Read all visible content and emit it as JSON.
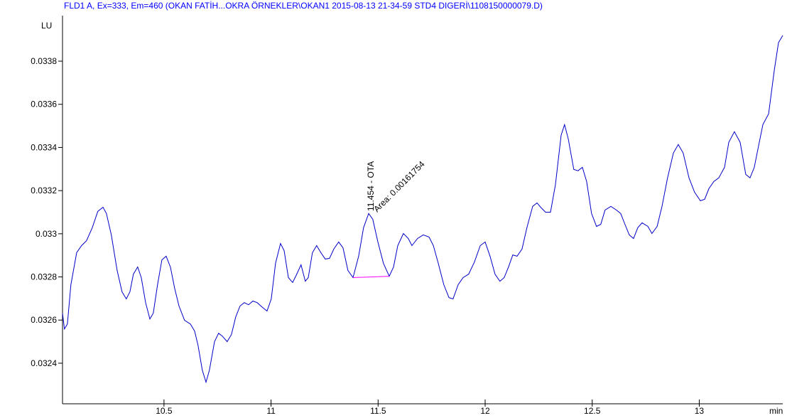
{
  "chart_data": {
    "type": "line",
    "title": "FLD1 A, Ex=333, Em=460 (OKAN FATİH...OKRA ÖRNEKLER\\OKAN1 2015-08-13 21-34-59 STD4 DIGERİ\\1108150000079.D)",
    "y_label": "LU",
    "x_label": "min",
    "annotations": [
      "11.454 - OTA",
      "Area: 0.00161754"
    ],
    "xlim": [
      10.026,
      13.39
    ],
    "ylim": [
      0.032212,
      0.034011
    ],
    "xticks": [
      10.5,
      11,
      11.5,
      12,
      12.5,
      13
    ],
    "yticks": [
      0.0324,
      0.0326,
      0.0328,
      0.033,
      0.0332,
      0.0334,
      0.0336,
      0.0338
    ],
    "series": [
      {
        "color": "#0000c8",
        "x": [
          10.026,
          10.035,
          10.049,
          10.065,
          10.092,
          10.115,
          10.138,
          10.165,
          10.191,
          10.215,
          10.231,
          10.254,
          10.281,
          10.304,
          10.324,
          10.341,
          10.357,
          10.377,
          10.394,
          10.414,
          10.434,
          10.45,
          10.47,
          10.49,
          10.51,
          10.53,
          10.55,
          10.57,
          10.596,
          10.623,
          10.643,
          10.659,
          10.679,
          10.696,
          10.712,
          10.736,
          10.755,
          10.772,
          10.795,
          10.815,
          10.835,
          10.855,
          10.875,
          10.895,
          10.915,
          10.935,
          10.961,
          10.981,
          11.001,
          11.021,
          11.044,
          11.061,
          11.081,
          11.101,
          11.12,
          11.14,
          11.16,
          11.174,
          11.193,
          11.213,
          11.233,
          11.253,
          11.273,
          11.293,
          11.316,
          11.336,
          11.359,
          11.383,
          11.409,
          11.432,
          11.456,
          11.475,
          11.499,
          11.525,
          11.552,
          11.572,
          11.592,
          11.618,
          11.641,
          11.658,
          11.684,
          11.711,
          11.738,
          11.758,
          11.781,
          11.807,
          11.831,
          11.85,
          11.874,
          11.897,
          11.923,
          11.95,
          11.977,
          12.0,
          12.023,
          12.046,
          12.069,
          12.089,
          12.109,
          12.129,
          12.149,
          12.172,
          12.195,
          12.222,
          12.242,
          12.262,
          12.282,
          12.305,
          12.328,
          12.355,
          12.371,
          12.388,
          12.414,
          12.434,
          12.454,
          12.474,
          12.497,
          12.52,
          12.54,
          12.56,
          12.587,
          12.613,
          12.633,
          12.653,
          12.673,
          12.693,
          12.713,
          12.733,
          12.76,
          12.779,
          12.803,
          12.826,
          12.852,
          12.879,
          12.902,
          12.925,
          12.952,
          12.978,
          13.005,
          13.025,
          13.045,
          13.068,
          13.091,
          13.118,
          13.138,
          13.164,
          13.191,
          13.217,
          13.237,
          13.257,
          13.277,
          13.297,
          13.324,
          13.35,
          13.37,
          13.39
        ],
        "values": [
          0.032632,
          0.032559,
          0.032582,
          0.032764,
          0.032912,
          0.032945,
          0.032968,
          0.033028,
          0.033104,
          0.033123,
          0.033094,
          0.032995,
          0.03283,
          0.032731,
          0.032698,
          0.032731,
          0.032813,
          0.032846,
          0.032797,
          0.032681,
          0.032605,
          0.032632,
          0.032764,
          0.032879,
          0.032896,
          0.032846,
          0.032747,
          0.032665,
          0.032599,
          0.032582,
          0.032549,
          0.032483,
          0.032368,
          0.032312,
          0.032368,
          0.0325,
          0.032539,
          0.032526,
          0.0325,
          0.032533,
          0.032615,
          0.032665,
          0.032681,
          0.032671,
          0.032688,
          0.032681,
          0.032658,
          0.032642,
          0.032698,
          0.032863,
          0.032955,
          0.032922,
          0.032797,
          0.032774,
          0.032813,
          0.032856,
          0.03278,
          0.032797,
          0.032912,
          0.032945,
          0.032912,
          0.032883,
          0.032886,
          0.032929,
          0.032962,
          0.032935,
          0.03283,
          0.032797,
          0.032896,
          0.033028,
          0.033094,
          0.033067,
          0.032962,
          0.032863,
          0.032803,
          0.032846,
          0.032945,
          0.033001,
          0.032978,
          0.032945,
          0.032978,
          0.032995,
          0.032985,
          0.032945,
          0.032863,
          0.032764,
          0.032704,
          0.032698,
          0.032764,
          0.032797,
          0.032813,
          0.032869,
          0.032945,
          0.032962,
          0.032896,
          0.032813,
          0.03278,
          0.032797,
          0.032846,
          0.032902,
          0.032896,
          0.032929,
          0.033028,
          0.033127,
          0.033143,
          0.03312,
          0.0331,
          0.0331,
          0.033226,
          0.033457,
          0.033506,
          0.03344,
          0.033298,
          0.033292,
          0.033308,
          0.033242,
          0.033094,
          0.033034,
          0.033044,
          0.03311,
          0.033127,
          0.03311,
          0.033094,
          0.033044,
          0.032995,
          0.032978,
          0.033028,
          0.033051,
          0.033034,
          0.033001,
          0.033034,
          0.033127,
          0.033259,
          0.033374,
          0.033414,
          0.033374,
          0.033259,
          0.033193,
          0.033153,
          0.03316,
          0.033209,
          0.033242,
          0.033259,
          0.033308,
          0.033424,
          0.033473,
          0.033424,
          0.033275,
          0.033259,
          0.033308,
          0.033407,
          0.033506,
          0.033556,
          0.033754,
          0.033886,
          0.033919
        ]
      },
      {
        "color": "#ff00ff",
        "x": [
          11.383,
          11.552
        ],
        "values": [
          0.032797,
          0.032803
        ]
      }
    ]
  }
}
